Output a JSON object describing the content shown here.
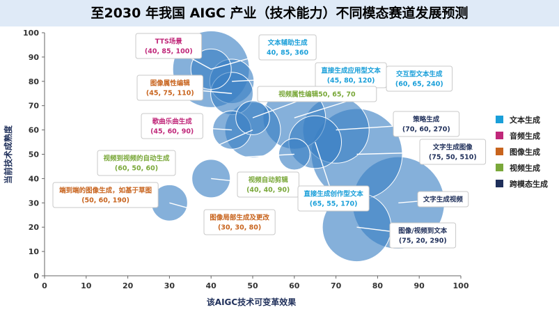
{
  "title": "至2030 年我国 AIGC 产业（技术能力）不同模态赛道发展预测",
  "legend_title": "",
  "chart_data": {
    "type": "scatter",
    "bubble": true,
    "title": "至2030 年我国 AIGC 产业（技术能力）不同模态赛道发展预测",
    "xlabel": "该AIGC技术可变革效果",
    "ylabel": "当前技术成熟度",
    "xlim": [
      0,
      100
    ],
    "ylim": [
      0,
      100
    ],
    "xticks": [
      0,
      10,
      20,
      30,
      40,
      50,
      60,
      70,
      80,
      90,
      100
    ],
    "yticks": [
      0,
      10,
      20,
      30,
      40,
      50,
      60,
      70,
      80,
      90,
      100
    ],
    "grid": false,
    "legend_position": "right",
    "legend": [
      {
        "name": "文本生成",
        "color": "#1a9fd9"
      },
      {
        "name": "音频生成",
        "color": "#c0287a"
      },
      {
        "name": "图像生成",
        "color": "#c8641e"
      },
      {
        "name": "视频生成",
        "color": "#7aa83a"
      },
      {
        "name": "跨模态生成",
        "color": "#1f2f5a"
      }
    ],
    "points": [
      {
        "name": "TTS场景",
        "value_label": "(40, 85, 100)",
        "x": 40,
        "y": 85,
        "size": 100,
        "category": "音频生成"
      },
      {
        "name": "文本辅助生成",
        "value_label": "40, 85, 360",
        "x": 40,
        "y": 85,
        "size": 360,
        "category": "文本生成"
      },
      {
        "name": "图像属性编辑",
        "value_label": "(45, 75, 110)",
        "x": 45,
        "y": 75,
        "size": 110,
        "category": "图像生成"
      },
      {
        "name": "直接生成应用型文本",
        "value_label": "(45, 80, 120)",
        "x": 45,
        "y": 80,
        "size": 120,
        "category": "文本生成"
      },
      {
        "name": "交互型文本生成",
        "value_label": "(60, 65, 240)",
        "x": 60,
        "y": 65,
        "size": 240,
        "category": "文本生成"
      },
      {
        "name": "视频属性编辑50, 65, 70",
        "value_label": "",
        "x": 50,
        "y": 65,
        "size": 70,
        "category": "视频生成"
      },
      {
        "name": "歌曲乐曲生成",
        "value_label": "(45, 60, 90)",
        "x": 45,
        "y": 60,
        "size": 90,
        "category": "音频生成"
      },
      {
        "name": "策略生成",
        "value_label": "(70, 60, 270)",
        "x": 70,
        "y": 60,
        "size": 270,
        "category": "跨模态生成"
      },
      {
        "name": "视频到视频的自动生成",
        "value_label": "(60, 50, 60)",
        "x": 60,
        "y": 50,
        "size": 60,
        "category": "视频生成"
      },
      {
        "name": "文字生成图像",
        "value_label": "(75, 50, 510)",
        "x": 75,
        "y": 50,
        "size": 510,
        "category": "跨模态生成"
      },
      {
        "name": "端到端的图像生成，如基于草图",
        "value_label": "(50, 60, 190)",
        "x": 50,
        "y": 60,
        "size": 190,
        "category": "图像生成"
      },
      {
        "name": "视频自动剪辑",
        "value_label": "(40, 40, 90)",
        "x": 40,
        "y": 40,
        "size": 90,
        "category": "视频生成"
      },
      {
        "name": "直接生成创作型文本",
        "value_label": "(65, 55, 170)",
        "x": 65,
        "y": 55,
        "size": 170,
        "category": "文本生成"
      },
      {
        "name": "文字生成视频",
        "value_label": "",
        "x": 85,
        "y": 30,
        "size": 520,
        "category": "跨模态生成"
      },
      {
        "name": "图像局部生成及更改",
        "value_label": "(30, 30, 80)",
        "x": 30,
        "y": 30,
        "size": 80,
        "category": "图像生成"
      },
      {
        "name": "图像/视频到文本",
        "value_label": "(75, 20, 290)",
        "x": 75,
        "y": 20,
        "size": 290,
        "category": "跨模态生成"
      }
    ]
  },
  "colors": {
    "bubble_fill": "#3a7fc4",
    "axis": "#666666",
    "callout_border": "#c8c8c8"
  }
}
